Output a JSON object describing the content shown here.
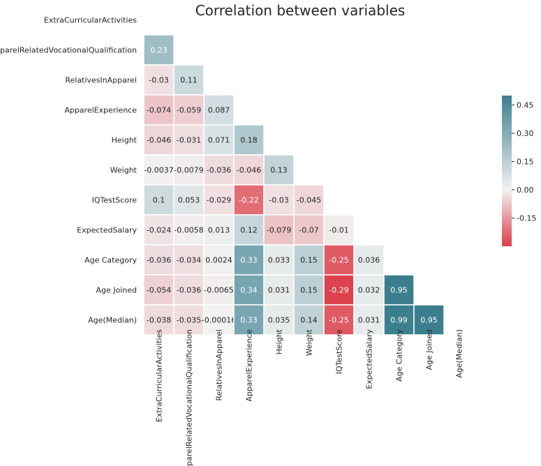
{
  "chart_data": {
    "type": "heatmap",
    "title": "Correlation between variables",
    "variables": [
      "ExtraCurricularActivities",
      "ApparelRelatedVocationalQualification",
      "RelativesInApparel",
      "ApparelExperience",
      "Height",
      "Weight",
      "IQTestScore",
      "ExpectedSalary",
      "Age Category",
      "Age Joined",
      "Age(Median)"
    ],
    "lower_triangle": [
      [],
      [
        "0.23"
      ],
      [
        "-0.03",
        "0.11"
      ],
      [
        "-0.074",
        "-0.059",
        "0.087"
      ],
      [
        "-0.046",
        "-0.031",
        "0.071",
        "0.18"
      ],
      [
        "-0.0037",
        "-0.0079",
        "-0.036",
        "-0.046",
        "0.13"
      ],
      [
        "0.1",
        "0.053",
        "-0.029",
        "-0.22",
        "-0.03",
        "-0.045"
      ],
      [
        "-0.024",
        "-0.0058",
        "0.013",
        "0.12",
        "-0.079",
        "-0.07",
        "-0.01"
      ],
      [
        "-0.036",
        "-0.034",
        "0.0024",
        "0.33",
        "0.033",
        "0.15",
        "-0.25",
        "0.036"
      ],
      [
        "-0.054",
        "-0.036",
        "-0.0065",
        "0.34",
        "0.031",
        "0.15",
        "-0.29",
        "0.032",
        "0.95"
      ],
      [
        "-0.038",
        "-0.035",
        "-0.00016",
        "0.33",
        "0.035",
        "0.14",
        "-0.25",
        "0.031",
        "0.99",
        "0.95"
      ]
    ],
    "mask": "upper-triangle-and-diagonal",
    "color_range": [
      -0.3,
      0.5
    ],
    "colorbar": {
      "ticks": [
        "0.45",
        "0.30",
        "0.15",
        "0.00",
        "-0.15"
      ],
      "tick_values": [
        0.45,
        0.3,
        0.15,
        0.0,
        -0.15
      ],
      "range": [
        -0.3,
        0.5
      ]
    },
    "colors": {
      "negative": "#dc3c48",
      "center": "#f2f2f2",
      "positive": "#3b7f8f",
      "label_dark": "#262626",
      "label_light": "#ffffff"
    }
  }
}
